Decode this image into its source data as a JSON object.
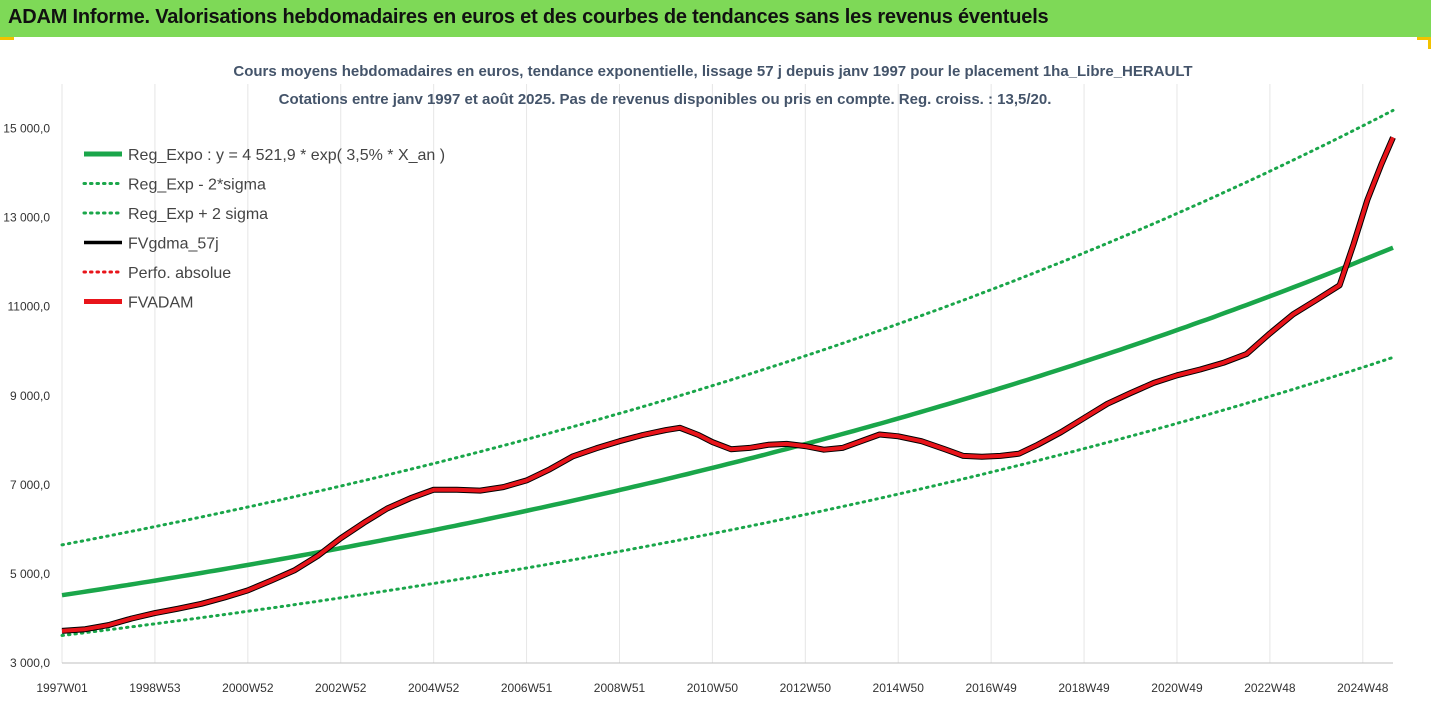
{
  "header": {
    "title": "ADAM Informe. Valorisations hebdomadaires en euros et des courbes de tendances sans les revenus éventuels"
  },
  "colors": {
    "banner": "#7ed957",
    "trend": "#1aa64a",
    "fvadam": "#e8141a",
    "fvgdma": "#000000",
    "perfo": "#e8141a",
    "title_text": "#44546a",
    "gridline": "#e6e6e6"
  },
  "chart_data": {
    "type": "line",
    "title": "Cours moyens hebdomadaires en euros, tendance exponentielle, lissage 57 j depuis janv 1997 pour le placement 1ha_Libre_HERAULT",
    "subtitle": "Cotations entre janv 1997 et août 2025. Pas de revenus disponibles ou pris en compte. Reg. croiss. : 13,5/20.",
    "xlabel": "",
    "ylabel": "",
    "x_range": [
      1997.0,
      2025.65
    ],
    "ylim": [
      3000,
      16000
    ],
    "y_ticks": [
      3000,
      5000,
      7000,
      9000,
      11000,
      13000,
      15000
    ],
    "y_tick_labels": [
      "3 000,0",
      "5 000,0",
      "7 000,0",
      "9 000,0",
      "11000,0",
      "13 000,0",
      "15 000,0"
    ],
    "x_ticks": [
      {
        "x": 1997.0,
        "label": "1997W01"
      },
      {
        "x": 1999.0,
        "label": "1998W53"
      },
      {
        "x": 2001.0,
        "label": "2000W52"
      },
      {
        "x": 2003.0,
        "label": "2002W52"
      },
      {
        "x": 2005.0,
        "label": "2004W52"
      },
      {
        "x": 2007.0,
        "label": "2006W51"
      },
      {
        "x": 2009.0,
        "label": "2008W51"
      },
      {
        "x": 2011.0,
        "label": "2010W50"
      },
      {
        "x": 2013.0,
        "label": "2012W50"
      },
      {
        "x": 2015.0,
        "label": "2014W50"
      },
      {
        "x": 2017.0,
        "label": "2016W49"
      },
      {
        "x": 2019.0,
        "label": "2018W49"
      },
      {
        "x": 2021.0,
        "label": "2020W49"
      },
      {
        "x": 2023.0,
        "label": "2022W48"
      },
      {
        "x": 2025.0,
        "label": "2024W48"
      }
    ],
    "grid": "vertical",
    "legend_position": "top-left",
    "regression": {
      "a": 4521.9,
      "rate": 0.035,
      "sigma_factor": 1.25
    },
    "series": [
      {
        "name": "Reg_Expo : y = 4 521,9 * exp( 3,5% *  X_an )",
        "style": "solid-thick",
        "color": "#1aa64a",
        "kind": "trend"
      },
      {
        "name": "Reg_Exp - 2*sigma",
        "style": "dotted",
        "color": "#1aa64a",
        "kind": "lower"
      },
      {
        "name": "Reg_Exp + 2 sigma",
        "style": "dotted",
        "color": "#1aa64a",
        "kind": "upper"
      },
      {
        "name": "FVgdma_57j",
        "style": "solid",
        "color": "#000000",
        "kind": "data"
      },
      {
        "name": "Perfo. absolue",
        "style": "dotted",
        "color": "#e8141a",
        "kind": "none"
      },
      {
        "name": "FVADAM",
        "style": "solid-thick",
        "color": "#e8141a",
        "kind": "data"
      }
    ],
    "fvadam_points": [
      [
        1997.0,
        3720
      ],
      [
        1997.5,
        3760
      ],
      [
        1998.0,
        3850
      ],
      [
        1998.5,
        4000
      ],
      [
        1999.0,
        4120
      ],
      [
        1999.5,
        4220
      ],
      [
        2000.0,
        4330
      ],
      [
        2000.5,
        4470
      ],
      [
        2001.0,
        4630
      ],
      [
        2001.5,
        4850
      ],
      [
        2002.0,
        5080
      ],
      [
        2002.5,
        5400
      ],
      [
        2003.0,
        5800
      ],
      [
        2003.5,
        6150
      ],
      [
        2004.0,
        6470
      ],
      [
        2004.5,
        6700
      ],
      [
        2005.0,
        6890
      ],
      [
        2005.5,
        6890
      ],
      [
        2006.0,
        6870
      ],
      [
        2006.5,
        6950
      ],
      [
        2007.0,
        7100
      ],
      [
        2007.5,
        7350
      ],
      [
        2008.0,
        7640
      ],
      [
        2008.5,
        7820
      ],
      [
        2009.0,
        7980
      ],
      [
        2009.5,
        8120
      ],
      [
        2010.0,
        8230
      ],
      [
        2010.3,
        8280
      ],
      [
        2010.7,
        8120
      ],
      [
        2011.0,
        7960
      ],
      [
        2011.4,
        7800
      ],
      [
        2011.8,
        7830
      ],
      [
        2012.2,
        7900
      ],
      [
        2012.6,
        7920
      ],
      [
        2013.0,
        7870
      ],
      [
        2013.4,
        7790
      ],
      [
        2013.8,
        7830
      ],
      [
        2014.2,
        7980
      ],
      [
        2014.6,
        8130
      ],
      [
        2015.0,
        8090
      ],
      [
        2015.5,
        7980
      ],
      [
        2016.0,
        7800
      ],
      [
        2016.4,
        7650
      ],
      [
        2016.8,
        7630
      ],
      [
        2017.2,
        7650
      ],
      [
        2017.6,
        7700
      ],
      [
        2018.0,
        7900
      ],
      [
        2018.5,
        8180
      ],
      [
        2019.0,
        8500
      ],
      [
        2019.5,
        8820
      ],
      [
        2020.0,
        9060
      ],
      [
        2020.5,
        9290
      ],
      [
        2021.0,
        9460
      ],
      [
        2021.5,
        9590
      ],
      [
        2022.0,
        9740
      ],
      [
        2022.5,
        9940
      ],
      [
        2023.0,
        10400
      ],
      [
        2023.5,
        10830
      ],
      [
        2024.0,
        11150
      ],
      [
        2024.5,
        11480
      ],
      [
        2024.8,
        12400
      ],
      [
        2025.1,
        13400
      ],
      [
        2025.4,
        14200
      ],
      [
        2025.65,
        14800
      ]
    ]
  }
}
